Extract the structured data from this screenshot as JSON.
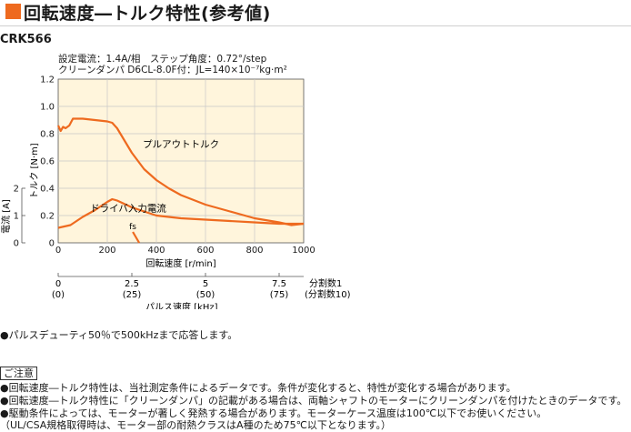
{
  "title": "回転速度―トルク特性(参考値)",
  "model": "CRK566",
  "conditions": {
    "line1": "設定電流：1.4A/相　ステップ角度：0.72°/step",
    "line2": "クリーンダンパ D6CL-8.0F付：JL=140×10⁻⁷kg·m²"
  },
  "colors": {
    "accent": "#ee6a1f",
    "curve": "#ee6a1f",
    "grid": "#c8c8c8",
    "bg": "#fff5dc"
  },
  "chart_data": {
    "type": "line",
    "x_label": "回転速度 [r/min]",
    "y_label": "トルク [N·m]",
    "current_label": "電流 [A]",
    "x_ticks": [
      "0",
      "200",
      "400",
      "600",
      "800",
      "1000"
    ],
    "y_ticks": [
      "0",
      "0.2",
      "0.4",
      "0.6",
      "0.8",
      "1.0",
      "1.2"
    ],
    "current_ticks": [
      "0",
      "1",
      "2"
    ],
    "xlim": [
      0,
      1000
    ],
    "ylim": [
      0,
      1.2
    ],
    "current_lim": [
      0,
      2
    ],
    "series": [
      {
        "name": "プルアウトトルク",
        "x": [
          0,
          10,
          20,
          30,
          45,
          60,
          100,
          150,
          200,
          220,
          240,
          260,
          300,
          350,
          400,
          450,
          500,
          600,
          700,
          800,
          900,
          950,
          1000
        ],
        "y": [
          0.86,
          0.82,
          0.85,
          0.84,
          0.86,
          0.91,
          0.91,
          0.9,
          0.89,
          0.88,
          0.84,
          0.78,
          0.66,
          0.54,
          0.46,
          0.4,
          0.35,
          0.28,
          0.23,
          0.18,
          0.15,
          0.13,
          0.14
        ]
      },
      {
        "name": "ドライバ入力電流",
        "x": [
          0,
          50,
          100,
          150,
          200,
          220,
          240,
          300,
          400,
          500,
          600,
          700,
          800,
          900,
          1000
        ],
        "current": [
          0.55,
          0.65,
          0.95,
          1.2,
          1.5,
          1.6,
          1.55,
          1.3,
          1.0,
          0.9,
          0.85,
          0.8,
          0.75,
          0.7,
          0.7
        ]
      }
    ],
    "fs_label": "fs",
    "fs_x": 330,
    "pulse_axis": {
      "label": "パルス速度 [kHz]",
      "ticks": [
        "0",
        "2.5",
        "5",
        "7.5"
      ],
      "ticks_sub": [
        "(0)",
        "(25)",
        "(50)",
        "(75)"
      ],
      "tick_rpm": [
        0,
        300,
        600,
        900
      ],
      "division_label": "分割数1",
      "division_label_sub": "(分割数10)"
    }
  },
  "note": "●パルスデューティ50％で500kHzまで応答します。",
  "notice": {
    "heading": "ご注意",
    "lines": [
      "●回転速度―トルク特性は、当社測定条件によるデータです。条件が変化すると、特性が変化する場合があります。",
      "●回転速度―トルク特性に「クリーンダンパ」の記載がある場合は、両軸シャフトのモーターにクリーンダンパを付けたときのデータです。",
      "●駆動条件によっては、モーターが著しく発熱する場合があります。モーターケース温度は100℃以下でお使いください。",
      "（UL/CSA規格取得時は、モーター部の耐熱クラスはA種のため75℃以下となります。）"
    ]
  }
}
